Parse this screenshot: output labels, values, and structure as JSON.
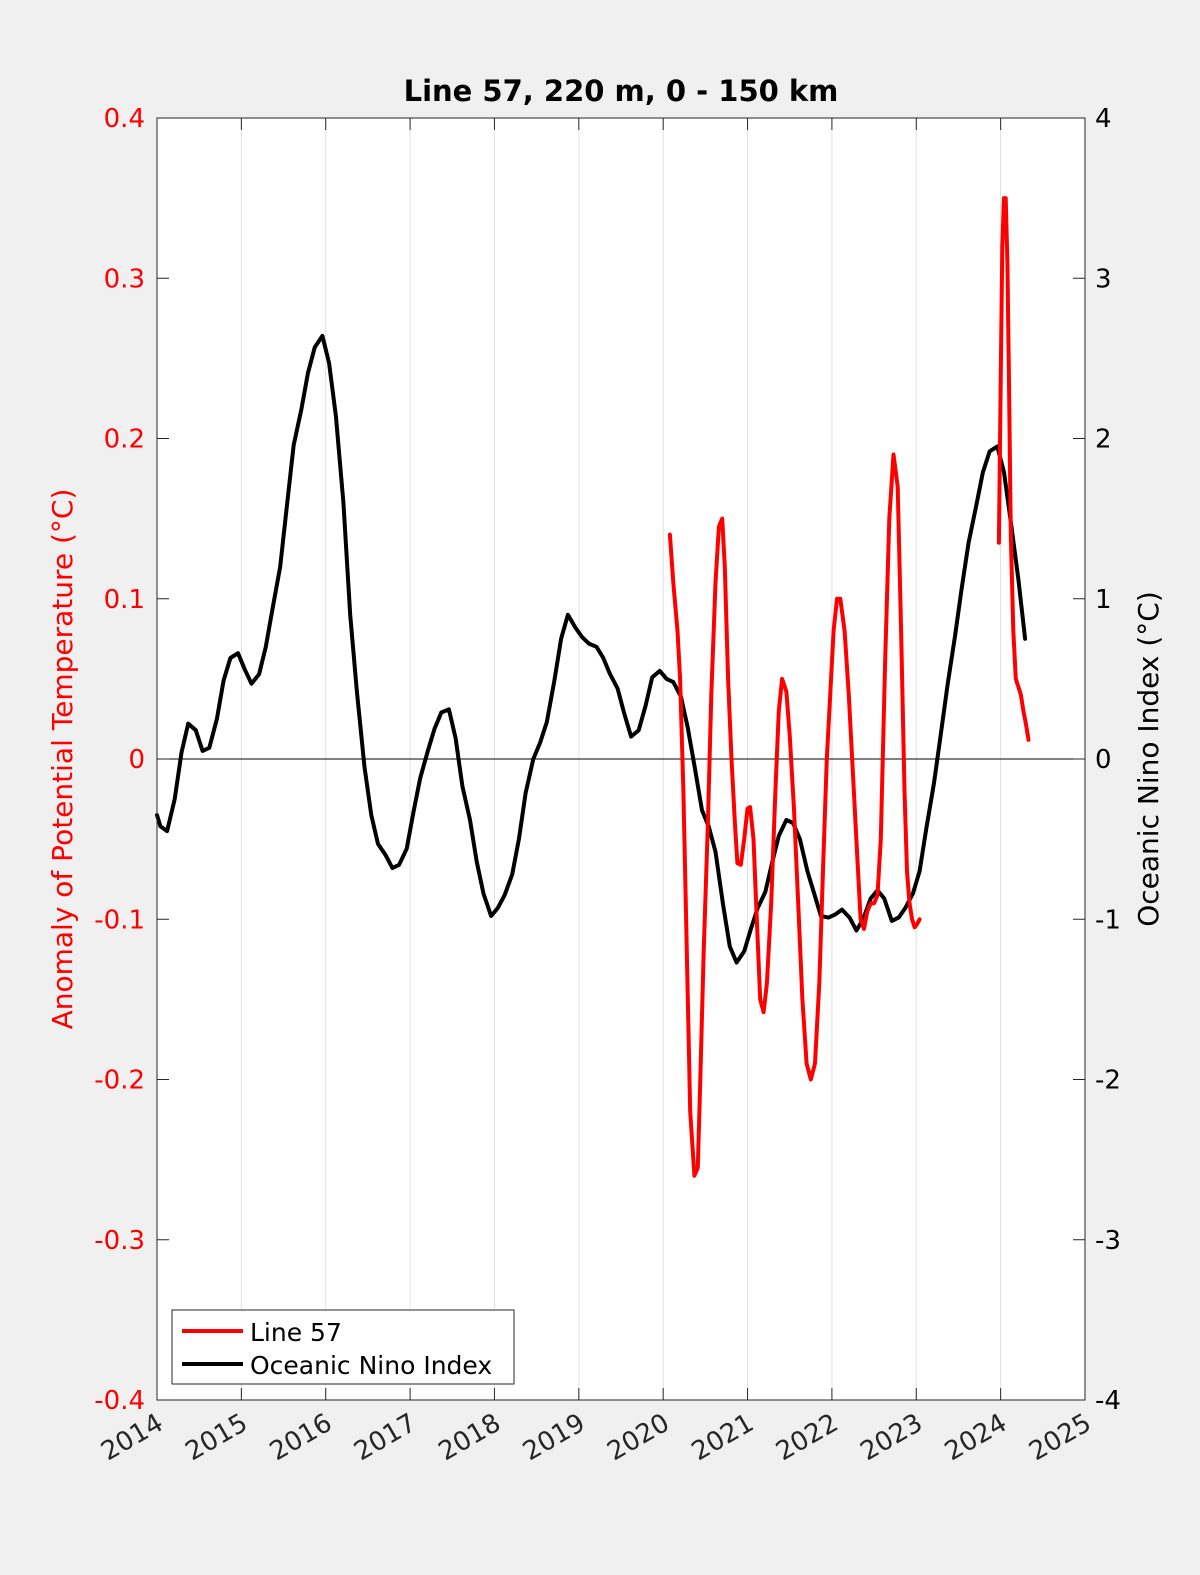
{
  "chart_data": {
    "type": "line",
    "title": "Line 57, 220 m, 0 - 150 km",
    "ylabel_left": "Anomaly of Potential Temperature (°C)",
    "ylabel_right": "Oceanic Nino Index (°C)",
    "xlim": [
      2014,
      2025
    ],
    "ylim_left": [
      -0.4,
      0.4
    ],
    "ylim_right": [
      -4,
      4
    ],
    "x_ticks": [
      "2014",
      "2015",
      "2016",
      "2017",
      "2018",
      "2019",
      "2020",
      "2021",
      "2022",
      "2023",
      "2024",
      "2025"
    ],
    "y_ticks_left": [
      "0.4",
      "0.3",
      "0.2",
      "0.1",
      "0",
      "-0.1",
      "-0.2",
      "-0.3",
      "-0.4"
    ],
    "y_ticks_right": [
      "4",
      "3",
      "2",
      "1",
      "0",
      "-1",
      "-2",
      "-3",
      "-4"
    ],
    "grid": "vertical",
    "legend_position": "bottom-left",
    "colors": {
      "line57": "#ff0000",
      "oni": "#000000",
      "left_axis": "#ff0000",
      "right_axis": "#000000"
    },
    "series": [
      {
        "name": "Line 57",
        "axis": "left",
        "x": [
          2020.08,
          2020.12,
          2020.17,
          2020.2,
          2020.24,
          2020.28,
          2020.32,
          2020.37,
          2020.41,
          2020.44,
          2020.48,
          2020.53,
          2020.57,
          2020.62,
          2020.66,
          2020.7,
          2020.73,
          2020.77,
          2020.81,
          2020.85,
          2020.88,
          2020.92,
          2020.96,
          2021.0,
          2021.03,
          2021.07,
          2021.11,
          2021.15,
          2021.19,
          2021.23,
          2021.28,
          2021.33,
          2021.37,
          2021.41,
          2021.46,
          2021.5,
          2021.55,
          2021.6,
          2021.65,
          2021.7,
          2021.75,
          2021.8,
          2021.85,
          2021.9,
          2021.94,
          2021.98,
          2022.02,
          2022.06,
          2022.1,
          2022.15,
          2022.2,
          2022.25,
          2022.3,
          2022.34,
          2022.38,
          2022.42,
          2022.46,
          2022.5,
          2022.54,
          2022.58,
          2022.63,
          2022.68,
          2022.73,
          2022.78,
          2022.82,
          2022.86,
          2022.89,
          2022.92,
          2022.95,
          2022.98,
          2023.01,
          2023.04,
          2023.98,
          2024.0,
          2024.02,
          2024.04,
          2024.06,
          2024.08,
          2024.1,
          2024.12,
          2024.15,
          2024.18,
          2024.21,
          2024.24,
          2024.27,
          2024.3,
          2024.33
        ],
        "y": [
          0.14,
          0.11,
          0.08,
          0.05,
          -0.02,
          -0.12,
          -0.22,
          -0.26,
          -0.255,
          -0.2,
          -0.12,
          -0.04,
          0.04,
          0.11,
          0.145,
          0.15,
          0.12,
          0.05,
          0.0,
          -0.04,
          -0.065,
          -0.066,
          -0.05,
          -0.031,
          -0.03,
          -0.05,
          -0.1,
          -0.15,
          -0.158,
          -0.14,
          -0.09,
          -0.02,
          0.03,
          0.05,
          0.042,
          0.015,
          -0.03,
          -0.09,
          -0.15,
          -0.19,
          -0.2,
          -0.19,
          -0.14,
          -0.06,
          0.0,
          0.04,
          0.08,
          0.1,
          0.1,
          0.08,
          0.04,
          -0.01,
          -0.06,
          -0.1,
          -0.106,
          -0.095,
          -0.09,
          -0.09,
          -0.085,
          -0.05,
          0.06,
          0.15,
          0.19,
          0.17,
          0.08,
          -0.02,
          -0.07,
          -0.09,
          -0.1,
          -0.105,
          -0.103,
          -0.1,
          0.135,
          0.23,
          0.32,
          0.35,
          0.35,
          0.31,
          0.23,
          0.14,
          0.08,
          0.05,
          0.045,
          0.04,
          0.03,
          0.022,
          0.012
        ]
      },
      {
        "name": "Oceanic Nino Index",
        "axis": "right",
        "x": [
          2014.0,
          2014.04,
          2014.12,
          2014.21,
          2014.29,
          2014.37,
          2014.46,
          2014.54,
          2014.62,
          2014.71,
          2014.79,
          2014.87,
          2014.96,
          2015.04,
          2015.12,
          2015.21,
          2015.29,
          2015.37,
          2015.46,
          2015.54,
          2015.62,
          2015.71,
          2015.79,
          2015.87,
          2015.96,
          2016.04,
          2016.12,
          2016.21,
          2016.29,
          2016.37,
          2016.46,
          2016.54,
          2016.62,
          2016.71,
          2016.79,
          2016.87,
          2016.96,
          2017.04,
          2017.12,
          2017.21,
          2017.29,
          2017.37,
          2017.46,
          2017.54,
          2017.62,
          2017.71,
          2017.79,
          2017.87,
          2017.96,
          2018.04,
          2018.12,
          2018.21,
          2018.29,
          2018.37,
          2018.46,
          2018.54,
          2018.62,
          2018.71,
          2018.79,
          2018.87,
          2018.96,
          2019.04,
          2019.12,
          2019.21,
          2019.29,
          2019.37,
          2019.46,
          2019.54,
          2019.62,
          2019.71,
          2019.79,
          2019.87,
          2019.96,
          2020.04,
          2020.12,
          2020.21,
          2020.29,
          2020.37,
          2020.46,
          2020.54,
          2020.62,
          2020.71,
          2020.79,
          2020.87,
          2020.96,
          2021.04,
          2021.12,
          2021.21,
          2021.29,
          2021.37,
          2021.46,
          2021.54,
          2021.62,
          2021.71,
          2021.79,
          2021.87,
          2021.96,
          2022.04,
          2022.12,
          2022.21,
          2022.29,
          2022.37,
          2022.46,
          2022.54,
          2022.62,
          2022.71,
          2022.79,
          2022.87,
          2022.96,
          2023.04,
          2023.12,
          2023.21,
          2023.29,
          2023.37,
          2023.46,
          2023.54,
          2023.62,
          2023.71,
          2023.79,
          2023.87,
          2023.96,
          2024.04,
          2024.12,
          2024.21,
          2024.29
        ],
        "y": [
          -0.35,
          -0.42,
          -0.45,
          -0.25,
          0.04,
          0.22,
          0.18,
          0.05,
          0.07,
          0.25,
          0.49,
          0.63,
          0.66,
          0.56,
          0.47,
          0.53,
          0.7,
          0.94,
          1.2,
          1.58,
          1.96,
          2.18,
          2.41,
          2.57,
          2.64,
          2.47,
          2.14,
          1.6,
          0.9,
          0.42,
          -0.05,
          -0.35,
          -0.53,
          -0.6,
          -0.68,
          -0.66,
          -0.56,
          -0.33,
          -0.12,
          0.05,
          0.19,
          0.29,
          0.31,
          0.13,
          -0.17,
          -0.38,
          -0.64,
          -0.84,
          -0.98,
          -0.93,
          -0.85,
          -0.72,
          -0.5,
          -0.21,
          0.0,
          0.1,
          0.23,
          0.49,
          0.75,
          0.9,
          0.82,
          0.76,
          0.72,
          0.7,
          0.63,
          0.53,
          0.44,
          0.28,
          0.14,
          0.18,
          0.33,
          0.51,
          0.55,
          0.5,
          0.48,
          0.39,
          0.2,
          -0.04,
          -0.32,
          -0.42,
          -0.58,
          -0.91,
          -1.17,
          -1.27,
          -1.2,
          -1.06,
          -0.93,
          -0.83,
          -0.65,
          -0.48,
          -0.38,
          -0.4,
          -0.5,
          -0.7,
          -0.84,
          -0.98,
          -0.99,
          -0.97,
          -0.94,
          -0.99,
          -1.07,
          -1.0,
          -0.87,
          -0.82,
          -0.87,
          -1.01,
          -0.99,
          -0.93,
          -0.84,
          -0.7,
          -0.43,
          -0.15,
          0.15,
          0.46,
          0.77,
          1.07,
          1.35,
          1.58,
          1.79,
          1.92,
          1.95,
          1.79,
          1.48,
          1.12,
          0.75
        ]
      }
    ]
  }
}
